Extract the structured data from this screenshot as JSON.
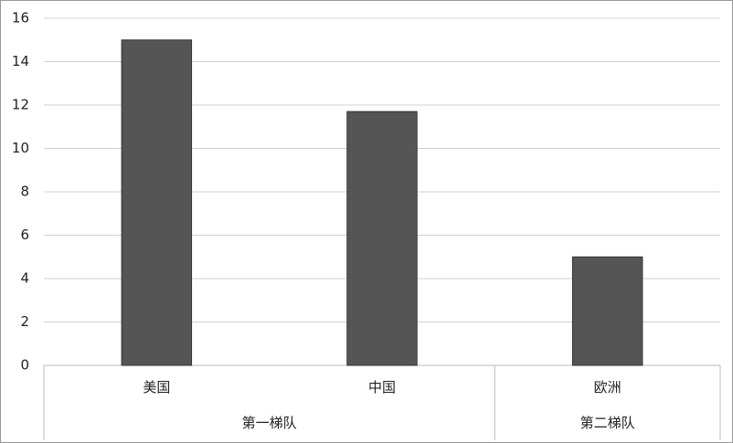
{
  "chart_data": {
    "type": "bar",
    "groups": [
      {
        "name": "第一梯队",
        "categories": [
          "美国",
          "中国"
        ]
      },
      {
        "name": "第二梯队",
        "categories": [
          "欧洲"
        ]
      }
    ],
    "values": [
      15,
      11.7,
      5
    ],
    "color": "#555555",
    "ylim": [
      0,
      16
    ],
    "yticks": [
      0,
      2,
      4,
      6,
      8,
      10,
      12,
      14,
      16
    ],
    "grid": true
  }
}
